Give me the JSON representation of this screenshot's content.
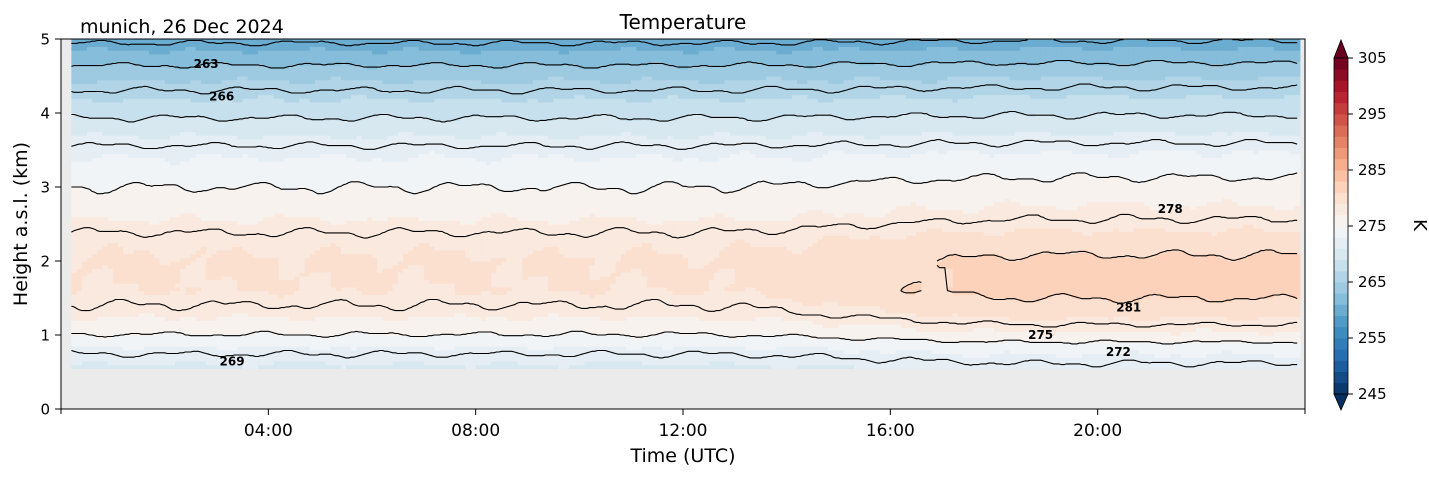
{
  "chart_data": {
    "type": "heatmap",
    "title": "Temperature",
    "subtitle": "munich, 26 Dec 2024",
    "xlabel": "Time (UTC)",
    "ylabel": "Height a.s.l. (km)",
    "xlim_hours": [
      0,
      24
    ],
    "ylim": [
      0,
      5
    ],
    "x_ticks": [
      "04:00",
      "08:00",
      "12:00",
      "16:00",
      "20:00"
    ],
    "x_tick_hours": [
      4,
      8,
      12,
      16,
      20
    ],
    "y_ticks": [
      "0",
      "1",
      "2",
      "3",
      "4",
      "5"
    ],
    "colorbar": {
      "label": "K",
      "range": [
        245,
        305
      ],
      "ticks": [
        "245",
        "255",
        "265",
        "275",
        "285",
        "295",
        "305"
      ],
      "colormap": "RdBu_r",
      "extend": "both"
    },
    "missing_color": "#ebebeb",
    "no_data_below_km": 0.55,
    "temperature_profile": {
      "height_km": [
        0.55,
        0.8,
        1.0,
        1.3,
        1.6,
        2.0,
        2.3,
        2.6,
        3.0,
        3.5,
        4.0,
        4.5,
        5.0
      ],
      "early_K": [
        270.5,
        272.5,
        275.0,
        277.5,
        279.0,
        279.2,
        278.5,
        276.8,
        275.0,
        272.5,
        268.5,
        264.5,
        259.5
      ],
      "late_K": [
        271.5,
        273.5,
        276.5,
        279.8,
        281.7,
        281.5,
        279.8,
        277.8,
        275.8,
        272.8,
        268.8,
        264.8,
        259.8
      ]
    },
    "contour_labels": [
      {
        "text": "263",
        "t_hours": 2.8,
        "h_km": 4.66
      },
      {
        "text": "266",
        "t_hours": 3.1,
        "h_km": 4.22
      },
      {
        "text": "278",
        "t_hours": 21.4,
        "h_km": 2.7
      },
      {
        "text": "281",
        "t_hours": 20.6,
        "h_km": 1.37
      },
      {
        "text": "275",
        "t_hours": 18.9,
        "h_km": 1.0
      },
      {
        "text": "272",
        "t_hours": 20.4,
        "h_km": 0.77
      },
      {
        "text": "269",
        "t_hours": 3.3,
        "h_km": 0.64
      }
    ]
  }
}
